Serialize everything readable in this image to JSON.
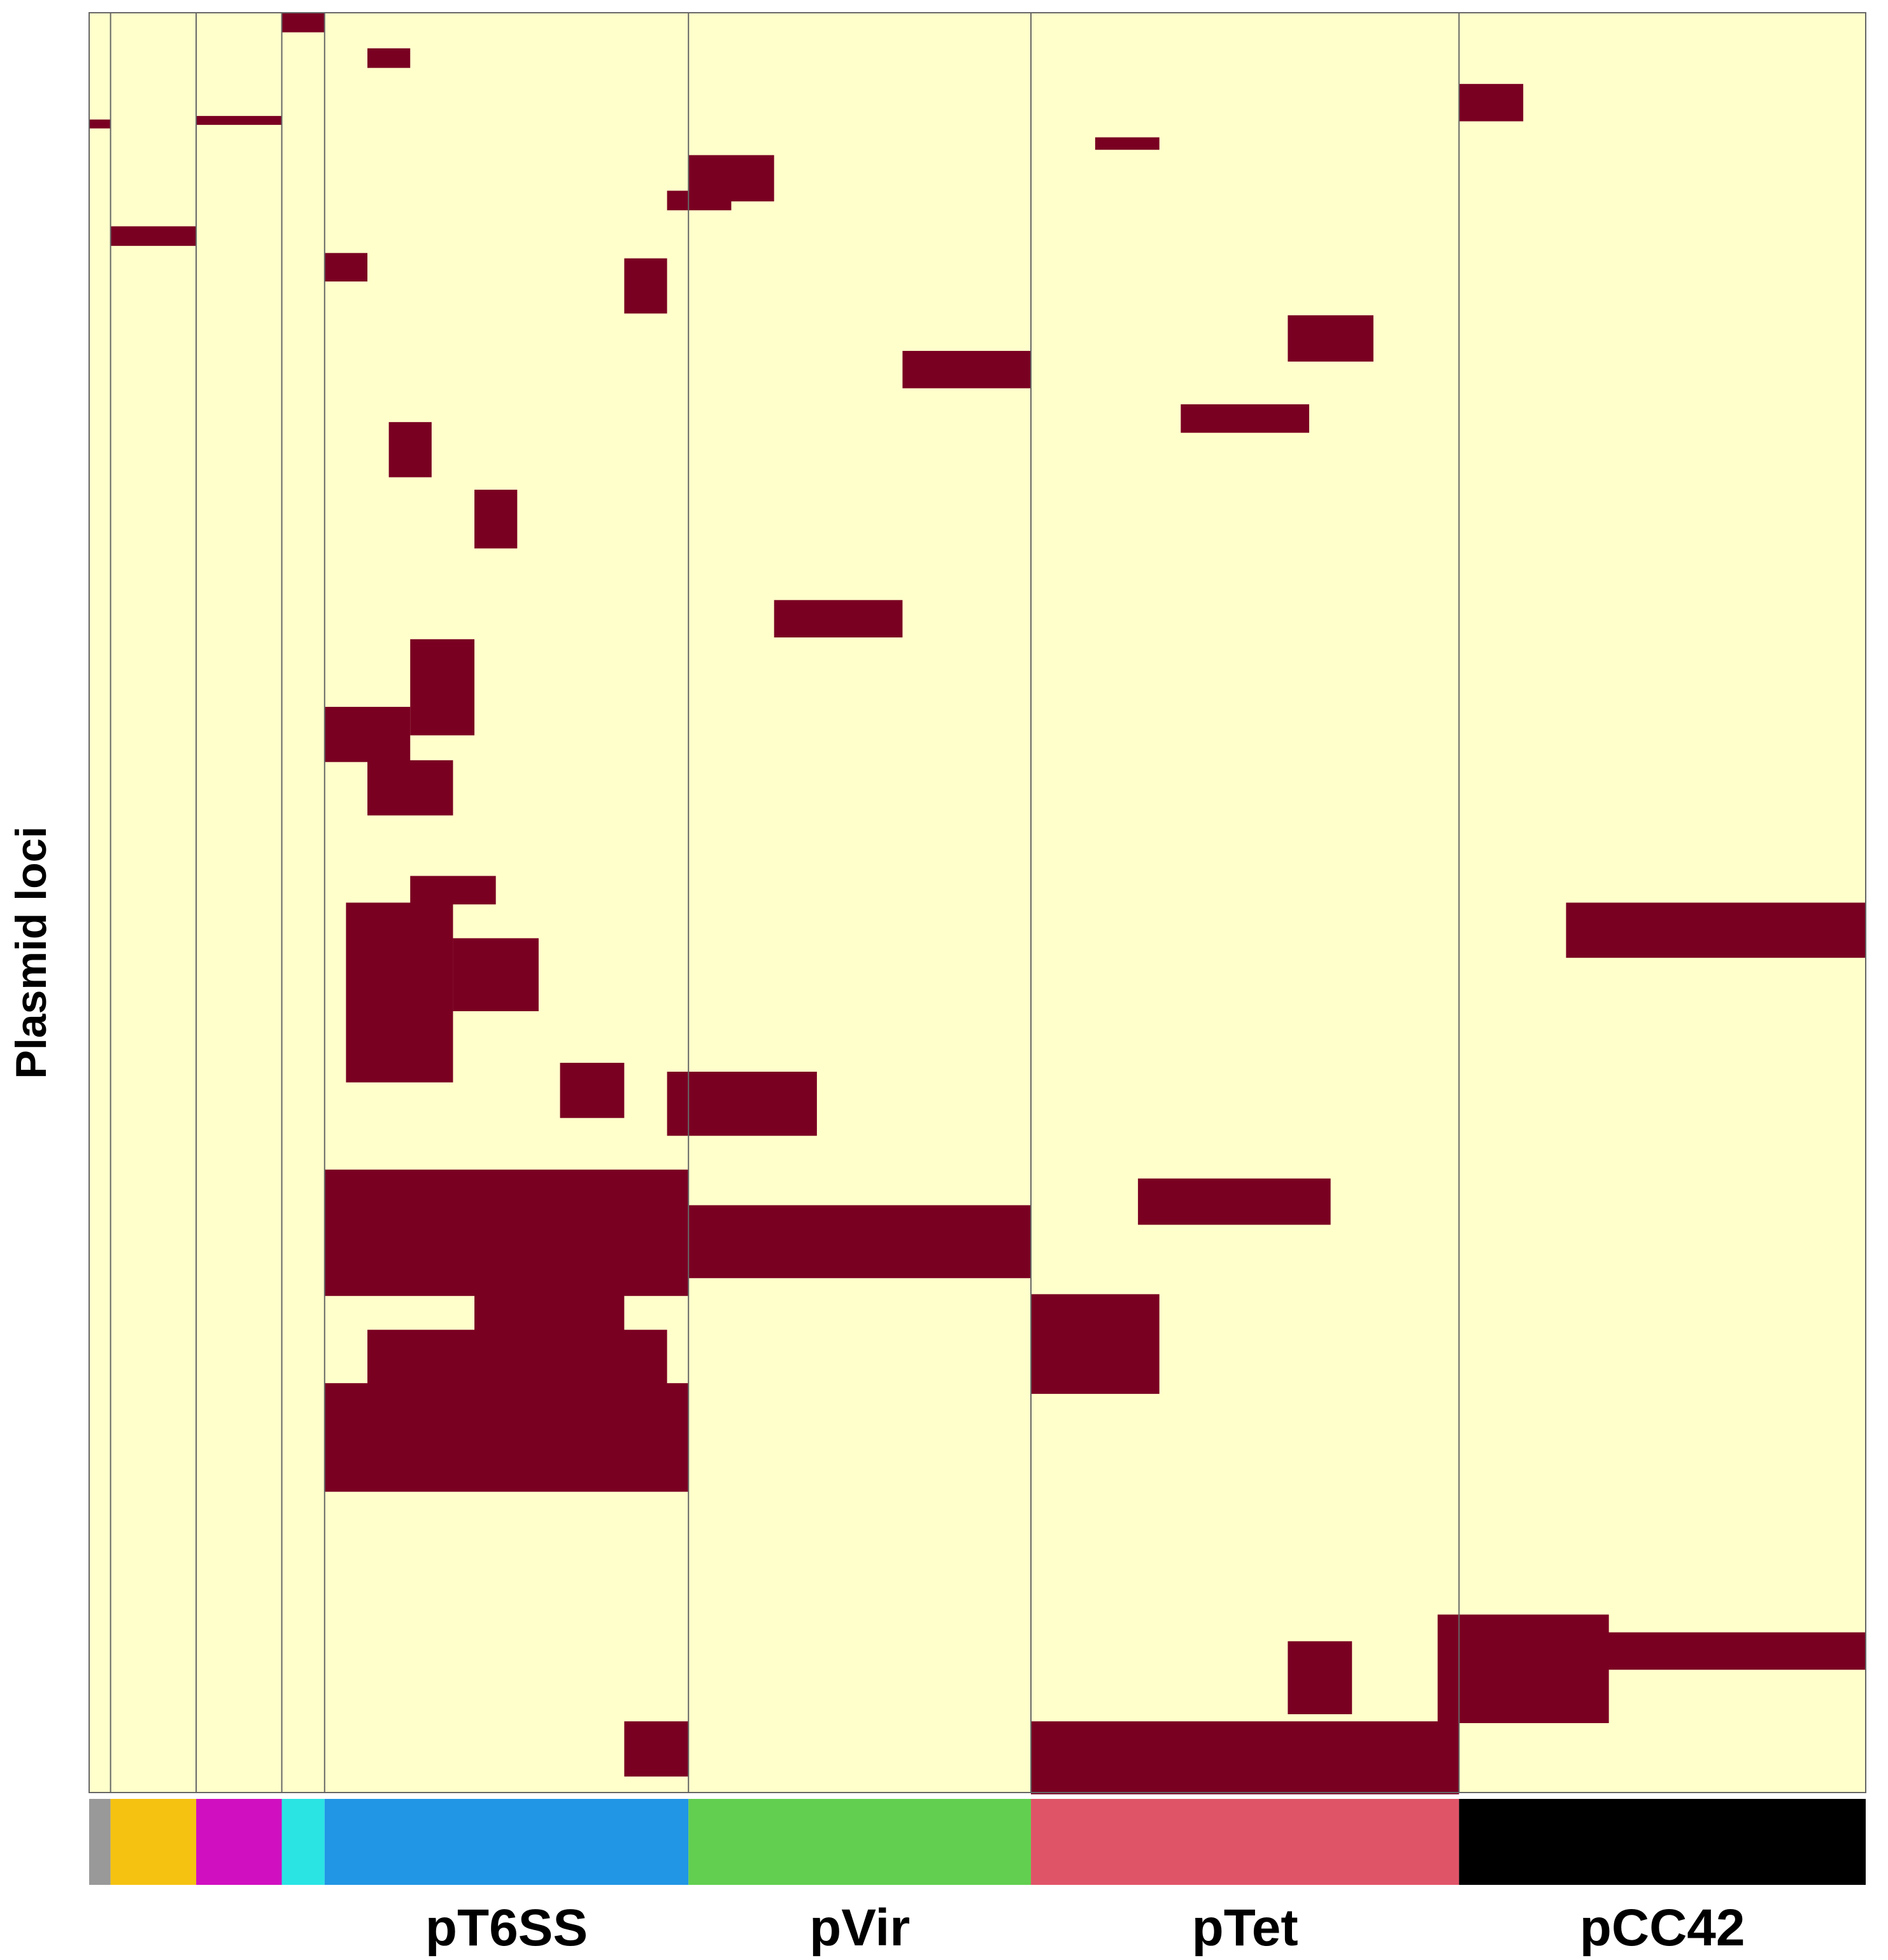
{
  "chart_data": {
    "type": "heatmap",
    "title": "",
    "ylabel": "Plasmid loci",
    "xlabel": "",
    "value_levels": [
      {
        "value": 0,
        "meaning": "absent",
        "color": "#FFFFCC"
      },
      {
        "value": 1,
        "meaning": "present",
        "color": "#7A0022"
      }
    ],
    "row_count": 1000,
    "column_groups": [
      {
        "label": "",
        "color": "#999999",
        "samples": 1
      },
      {
        "label": "",
        "color": "#F5C211",
        "samples": 4
      },
      {
        "label": "",
        "color": "#D010C0",
        "samples": 4
      },
      {
        "label": "",
        "color": "#2AE4E4",
        "samples": 2
      },
      {
        "label": "pT6SS",
        "color": "#2196E4",
        "samples": 17
      },
      {
        "label": "pVir",
        "color": "#62CF50",
        "samples": 16
      },
      {
        "label": "pTet",
        "color": "#E05468",
        "samples": 20
      },
      {
        "label": "pCC42",
        "color": "#000000",
        "samples": 19
      }
    ],
    "present_blocks": [
      {
        "rows": [
          60,
          64
        ],
        "samples": [
          0,
          0
        ]
      },
      {
        "rows": [
          120,
          130
        ],
        "samples": [
          1,
          4
        ]
      },
      {
        "rows": [
          58,
          62
        ],
        "samples": [
          5,
          8
        ]
      },
      {
        "rows": [
          0,
          10
        ],
        "samples": [
          9,
          10
        ]
      },
      {
        "rows": [
          20,
          30
        ],
        "samples": [
          13,
          14
        ]
      },
      {
        "rows": [
          135,
          150
        ],
        "samples": [
          11,
          12
        ]
      },
      {
        "rows": [
          138,
          168
        ],
        "samples": [
          25,
          26
        ]
      },
      {
        "rows": [
          230,
          260
        ],
        "samples": [
          14,
          15
        ]
      },
      {
        "rows": [
          268,
          300
        ],
        "samples": [
          18,
          19
        ]
      },
      {
        "rows": [
          352,
          405
        ],
        "samples": [
          15,
          17
        ]
      },
      {
        "rows": [
          390,
          420
        ],
        "samples": [
          11,
          14
        ]
      },
      {
        "rows": [
          420,
          450
        ],
        "samples": [
          13,
          16
        ]
      },
      {
        "rows": [
          485,
          500
        ],
        "samples": [
          15,
          18
        ]
      },
      {
        "rows": [
          500,
          600
        ],
        "samples": [
          12,
          16
        ]
      },
      {
        "rows": [
          520,
          560
        ],
        "samples": [
          17,
          20
        ]
      },
      {
        "rows": [
          590,
          620
        ],
        "samples": [
          22,
          24
        ]
      },
      {
        "rows": [
          650,
          720
        ],
        "samples": [
          11,
          27
        ]
      },
      {
        "rows": [
          695,
          740
        ],
        "samples": [
          18,
          24
        ]
      },
      {
        "rows": [
          740,
          770
        ],
        "samples": [
          13,
          26
        ]
      },
      {
        "rows": [
          770,
          830
        ],
        "samples": [
          11,
          27
        ]
      },
      {
        "rows": [
          960,
          990
        ],
        "samples": [
          25,
          27
        ]
      },
      {
        "rows": [
          80,
          105
        ],
        "samples": [
          28,
          31
        ]
      },
      {
        "rows": [
          100,
          110
        ],
        "samples": [
          27,
          29
        ]
      },
      {
        "rows": [
          190,
          210
        ],
        "samples": [
          38,
          43
        ]
      },
      {
        "rows": [
          330,
          350
        ],
        "samples": [
          32,
          37
        ]
      },
      {
        "rows": [
          595,
          630
        ],
        "samples": [
          27,
          33
        ]
      },
      {
        "rows": [
          670,
          710
        ],
        "samples": [
          27,
          43
        ]
      },
      {
        "rows": [
          70,
          76
        ],
        "samples": [
          47,
          49
        ]
      },
      {
        "rows": [
          170,
          195
        ],
        "samples": [
          56,
          59
        ]
      },
      {
        "rows": [
          220,
          235
        ],
        "samples": [
          51,
          56
        ]
      },
      {
        "rows": [
          655,
          680
        ],
        "samples": [
          49,
          57
        ]
      },
      {
        "rows": [
          720,
          775
        ],
        "samples": [
          44,
          49
        ]
      },
      {
        "rows": [
          915,
          955
        ],
        "samples": [
          56,
          58
        ]
      },
      {
        "rows": [
          960,
          1000
        ],
        "samples": [
          44,
          63
        ]
      },
      {
        "rows": [
          40,
          60
        ],
        "samples": [
          64,
          66
        ]
      },
      {
        "rows": [
          500,
          530
        ],
        "samples": [
          69,
          82
        ]
      },
      {
        "rows": [
          900,
          960
        ],
        "samples": [
          63,
          70
        ]
      },
      {
        "rows": [
          910,
          930
        ],
        "samples": [
          70,
          82
        ]
      }
    ]
  },
  "group_band": {
    "gap_color": "#FFFFFF"
  },
  "grid": {
    "cell_border_color": "#666666"
  }
}
